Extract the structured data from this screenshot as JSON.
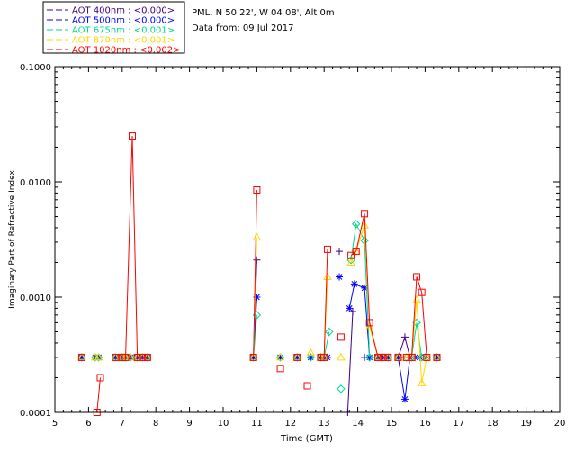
{
  "chart_data": {
    "type": "scatter",
    "title": "",
    "xlabel": "Time (GMT)",
    "ylabel": "Imaginary Part of Refractive Index",
    "xlim": [
      5,
      20
    ],
    "ylim": [
      0.0001,
      0.1
    ],
    "yscale": "log",
    "x_ticks": [
      5,
      6,
      7,
      8,
      9,
      10,
      11,
      12,
      13,
      14,
      15,
      16,
      17,
      18,
      19,
      20
    ],
    "y_ticks": [
      {
        "value": 0.0001,
        "label": "0.0001"
      },
      {
        "value": 0.001,
        "label": "0.0010"
      },
      {
        "value": 0.01,
        "label": "0.0100"
      },
      {
        "value": 0.1,
        "label": "0.1000"
      }
    ],
    "info_lines": [
      "PML, N 50 22', W 04 08', Alt 0m",
      "Data from: 09 Jul 2017"
    ],
    "legend_placement": "top-left, above plot",
    "series": [
      {
        "name": "AOT  400nm : <0.000>",
        "color": "#3f007f",
        "marker": "plus",
        "segments": [
          [
            [
              5.8,
              0.0003
            ]
          ],
          [
            [
              6.2,
              0.0003
            ],
            [
              6.3,
              0.0003
            ]
          ],
          [
            [
              6.8,
              0.0003
            ],
            [
              7.0,
              0.0003
            ],
            [
              7.1,
              0.0003
            ],
            [
              7.25,
              0.0003
            ],
            [
              7.45,
              0.0003
            ],
            [
              7.6,
              0.0003
            ],
            [
              7.75,
              0.0003
            ]
          ],
          [
            [
              10.9,
              0.0003
            ],
            [
              11.0,
              0.0021
            ]
          ],
          [
            [
              11.7,
              0.0003
            ]
          ],
          [
            [
              12.2,
              0.0003
            ]
          ],
          [
            [
              12.6,
              0.0003
            ]
          ],
          [
            [
              12.9,
              0.0003
            ],
            [
              13.0,
              0.0003
            ],
            [
              13.1,
              0.0003
            ]
          ],
          [
            [
              13.45,
              0.0025
            ]
          ],
          [
            [
              13.7,
              0.0001
            ],
            [
              13.85,
              0.00075
            ]
          ],
          [
            [
              14.2,
              0.0003
            ],
            [
              14.35,
              0.0003
            ],
            [
              14.6,
              0.0003
            ],
            [
              14.75,
              0.0003
            ],
            [
              14.9,
              0.0003
            ]
          ],
          [
            [
              15.2,
              0.0003
            ],
            [
              15.4,
              0.00045
            ],
            [
              15.55,
              0.0003
            ],
            [
              15.7,
              0.0003
            ],
            [
              15.85,
              0.0003
            ],
            [
              16.0,
              0.0003
            ]
          ],
          [
            [
              16.35,
              0.0003
            ]
          ]
        ]
      },
      {
        "name": "AOT  500nm : <0.000>",
        "color": "#0000ff",
        "marker": "asterisk",
        "segments": [
          [
            [
              5.8,
              0.0003
            ]
          ],
          [
            [
              6.2,
              0.0003
            ],
            [
              6.3,
              0.0003
            ]
          ],
          [
            [
              6.8,
              0.0003
            ],
            [
              7.0,
              0.0003
            ],
            [
              7.1,
              0.0003
            ],
            [
              7.25,
              0.0003
            ],
            [
              7.45,
              0.0003
            ],
            [
              7.6,
              0.0003
            ],
            [
              7.75,
              0.0003
            ]
          ],
          [
            [
              10.9,
              0.0003
            ],
            [
              11.0,
              0.001
            ]
          ],
          [
            [
              11.7,
              0.0003
            ]
          ],
          [
            [
              12.2,
              0.0003
            ]
          ],
          [
            [
              12.6,
              0.0003
            ]
          ],
          [
            [
              12.9,
              0.0003
            ],
            [
              13.0,
              0.0003
            ],
            [
              13.1,
              0.0003
            ]
          ],
          [
            [
              13.45,
              0.0015
            ]
          ],
          [
            [
              13.75,
              0.0008
            ],
            [
              13.9,
              0.0013
            ],
            [
              14.2,
              0.0012
            ],
            [
              14.35,
              0.0003
            ],
            [
              14.6,
              0.0003
            ],
            [
              14.75,
              0.0003
            ],
            [
              14.9,
              0.0003
            ]
          ],
          [
            [
              15.2,
              0.0003
            ],
            [
              15.4,
              0.00013
            ],
            [
              15.55,
              0.0003
            ],
            [
              15.7,
              0.0003
            ],
            [
              15.85,
              0.0003
            ],
            [
              16.0,
              0.0003
            ]
          ],
          [
            [
              16.35,
              0.0003
            ]
          ]
        ]
      },
      {
        "name": "AOT  675nm : <0.001>",
        "color": "#00d98c",
        "marker": "diamond",
        "segments": [
          [
            [
              5.8,
              0.0003
            ]
          ],
          [
            [
              6.2,
              0.0003
            ],
            [
              6.3,
              0.0003
            ]
          ],
          [
            [
              6.8,
              0.0003
            ],
            [
              7.0,
              0.0003
            ],
            [
              7.1,
              0.0003
            ],
            [
              7.25,
              0.0003
            ],
            [
              7.45,
              0.0003
            ],
            [
              7.6,
              0.0003
            ],
            [
              7.75,
              0.0003
            ]
          ],
          [
            [
              10.9,
              0.0003
            ],
            [
              11.0,
              0.0007
            ]
          ],
          [
            [
              11.7,
              0.0003
            ]
          ],
          [
            [
              12.2,
              0.0003
            ]
          ],
          [
            [
              12.6,
              0.0003
            ]
          ],
          [
            [
              12.9,
              0.0003
            ],
            [
              13.0,
              0.0003
            ],
            [
              13.15,
              0.0005
            ]
          ],
          [
            [
              13.5,
              0.00016
            ]
          ],
          [
            [
              13.8,
              0.0021
            ],
            [
              13.95,
              0.0043
            ],
            [
              14.2,
              0.0031
            ],
            [
              14.35,
              0.0003
            ],
            [
              14.6,
              0.0003
            ],
            [
              14.75,
              0.0003
            ],
            [
              14.9,
              0.0003
            ]
          ],
          [
            [
              15.2,
              0.0003
            ],
            [
              15.45,
              0.0003
            ],
            [
              15.6,
              0.0003
            ],
            [
              15.75,
              0.0006
            ],
            [
              15.9,
              0.0003
            ],
            [
              16.05,
              0.0003
            ]
          ],
          [
            [
              16.35,
              0.0003
            ]
          ]
        ]
      },
      {
        "name": "AOT  870nm : <0.001>",
        "color": "#ffd700",
        "marker": "triangle",
        "segments": [
          [
            [
              5.8,
              0.0003
            ]
          ],
          [
            [
              6.2,
              0.0003
            ],
            [
              6.3,
              0.0003
            ]
          ],
          [
            [
              6.8,
              0.0003
            ],
            [
              7.0,
              0.0003
            ],
            [
              7.1,
              0.0003
            ],
            [
              7.25,
              0.0003
            ],
            [
              7.45,
              0.0003
            ],
            [
              7.6,
              0.0003
            ],
            [
              7.75,
              0.0003
            ]
          ],
          [
            [
              10.9,
              0.0003
            ],
            [
              11.0,
              0.0033
            ]
          ],
          [
            [
              11.7,
              0.0003
            ]
          ],
          [
            [
              12.2,
              0.0003
            ]
          ],
          [
            [
              12.6,
              0.00033
            ]
          ],
          [
            [
              12.9,
              0.0003
            ],
            [
              13.0,
              0.0003
            ],
            [
              13.1,
              0.0015
            ]
          ],
          [
            [
              13.5,
              0.0003
            ]
          ],
          [
            [
              13.8,
              0.002
            ],
            [
              13.95,
              0.0025
            ],
            [
              14.2,
              0.0042
            ],
            [
              14.35,
              0.00055
            ],
            [
              14.6,
              0.0003
            ],
            [
              14.75,
              0.0003
            ],
            [
              14.9,
              0.0003
            ]
          ],
          [
            [
              15.2,
              0.0003
            ],
            [
              15.45,
              0.0003
            ],
            [
              15.6,
              0.0003
            ],
            [
              15.75,
              0.00095
            ],
            [
              15.9,
              0.00018
            ],
            [
              16.05,
              0.0003
            ]
          ],
          [
            [
              16.35,
              0.0003
            ]
          ]
        ]
      },
      {
        "name": "AOT 1020nm : <0.002>",
        "color": "#ff0000",
        "marker": "square",
        "segments": [
          [
            [
              5.8,
              0.0003
            ]
          ],
          [
            [
              6.25,
              0.0001
            ],
            [
              6.35,
              0.0002
            ]
          ],
          [
            [
              6.8,
              0.0003
            ],
            [
              7.0,
              0.0003
            ],
            [
              7.1,
              0.0003
            ],
            [
              7.3,
              0.025
            ],
            [
              7.45,
              0.0003
            ],
            [
              7.6,
              0.0003
            ],
            [
              7.75,
              0.0003
            ]
          ],
          [
            [
              10.9,
              0.0003
            ],
            [
              11.0,
              0.0085
            ]
          ],
          [
            [
              11.7,
              0.00024
            ]
          ],
          [
            [
              12.2,
              0.0003
            ]
          ],
          [
            [
              12.5,
              0.00017
            ]
          ],
          [
            [
              12.9,
              0.0003
            ],
            [
              13.0,
              0.0003
            ],
            [
              13.1,
              0.0026
            ]
          ],
          [
            [
              13.5,
              0.00045
            ]
          ],
          [
            [
              13.8,
              0.0023
            ],
            [
              13.95,
              0.0025
            ],
            [
              14.2,
              0.0053
            ],
            [
              14.35,
              0.0006
            ],
            [
              14.6,
              0.0003
            ],
            [
              14.75,
              0.0003
            ],
            [
              14.9,
              0.0003
            ]
          ],
          [
            [
              15.2,
              0.0003
            ],
            [
              15.45,
              0.0003
            ],
            [
              15.6,
              0.0003
            ],
            [
              15.75,
              0.0015
            ],
            [
              15.9,
              0.0011
            ],
            [
              16.05,
              0.0003
            ]
          ],
          [
            [
              16.35,
              0.0003
            ]
          ]
        ]
      }
    ]
  }
}
